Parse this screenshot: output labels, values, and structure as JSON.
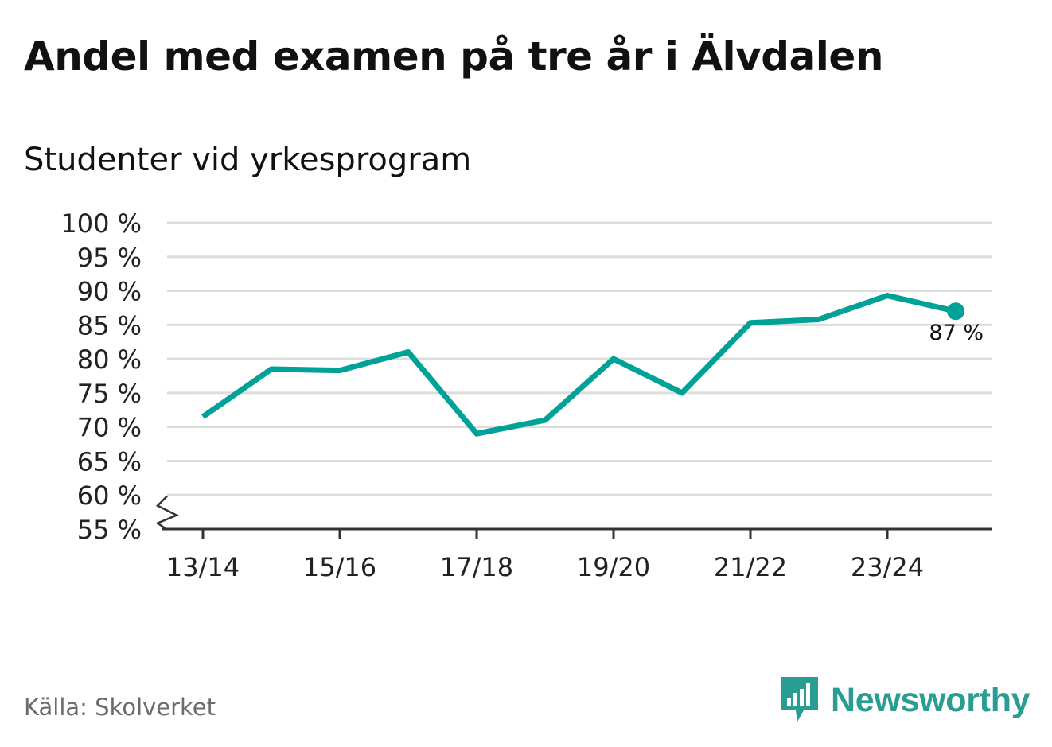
{
  "title": "Andel med examen på tre år i Älvdalen",
  "subtitle": "Studenter vid yrkesprogram",
  "source": "Källa: Skolverket",
  "brand": {
    "name": "Newsworthy",
    "color": "#2a9d93",
    "icon": "chat-bars-icon"
  },
  "colors": {
    "line": "#00a196",
    "grid": "#dcdcdc",
    "axis": "#333333"
  },
  "chart_data": {
    "type": "line",
    "title": "Andel med examen på tre år i Älvdalen",
    "subtitle": "Studenter vid yrkesprogram",
    "xlabel": "",
    "ylabel": "",
    "categories": [
      "13/14",
      "14/15",
      "15/16",
      "16/17",
      "17/18",
      "18/19",
      "19/20",
      "20/21",
      "21/22",
      "22/23",
      "23/24",
      "24/25"
    ],
    "x_tick_labels": [
      "13/14",
      "15/16",
      "17/18",
      "19/20",
      "21/22",
      "23/24"
    ],
    "series": [
      {
        "values": [
          71.5,
          78.5,
          78.3,
          81.0,
          69.0,
          71.0,
          80.0,
          75.0,
          85.3,
          85.8,
          89.3,
          87.0
        ]
      }
    ],
    "y_ticks": [
      55,
      60,
      65,
      70,
      75,
      80,
      85,
      90,
      95,
      100
    ],
    "y_tick_labels": [
      "55 %",
      "60 %",
      "65 %",
      "70 %",
      "75 %",
      "80 %",
      "85 %",
      "90 %",
      "95 %",
      "100 %"
    ],
    "ylim": [
      55,
      100
    ],
    "axis_break": true,
    "grid": true,
    "legend": "none",
    "end_label": "87 %"
  }
}
